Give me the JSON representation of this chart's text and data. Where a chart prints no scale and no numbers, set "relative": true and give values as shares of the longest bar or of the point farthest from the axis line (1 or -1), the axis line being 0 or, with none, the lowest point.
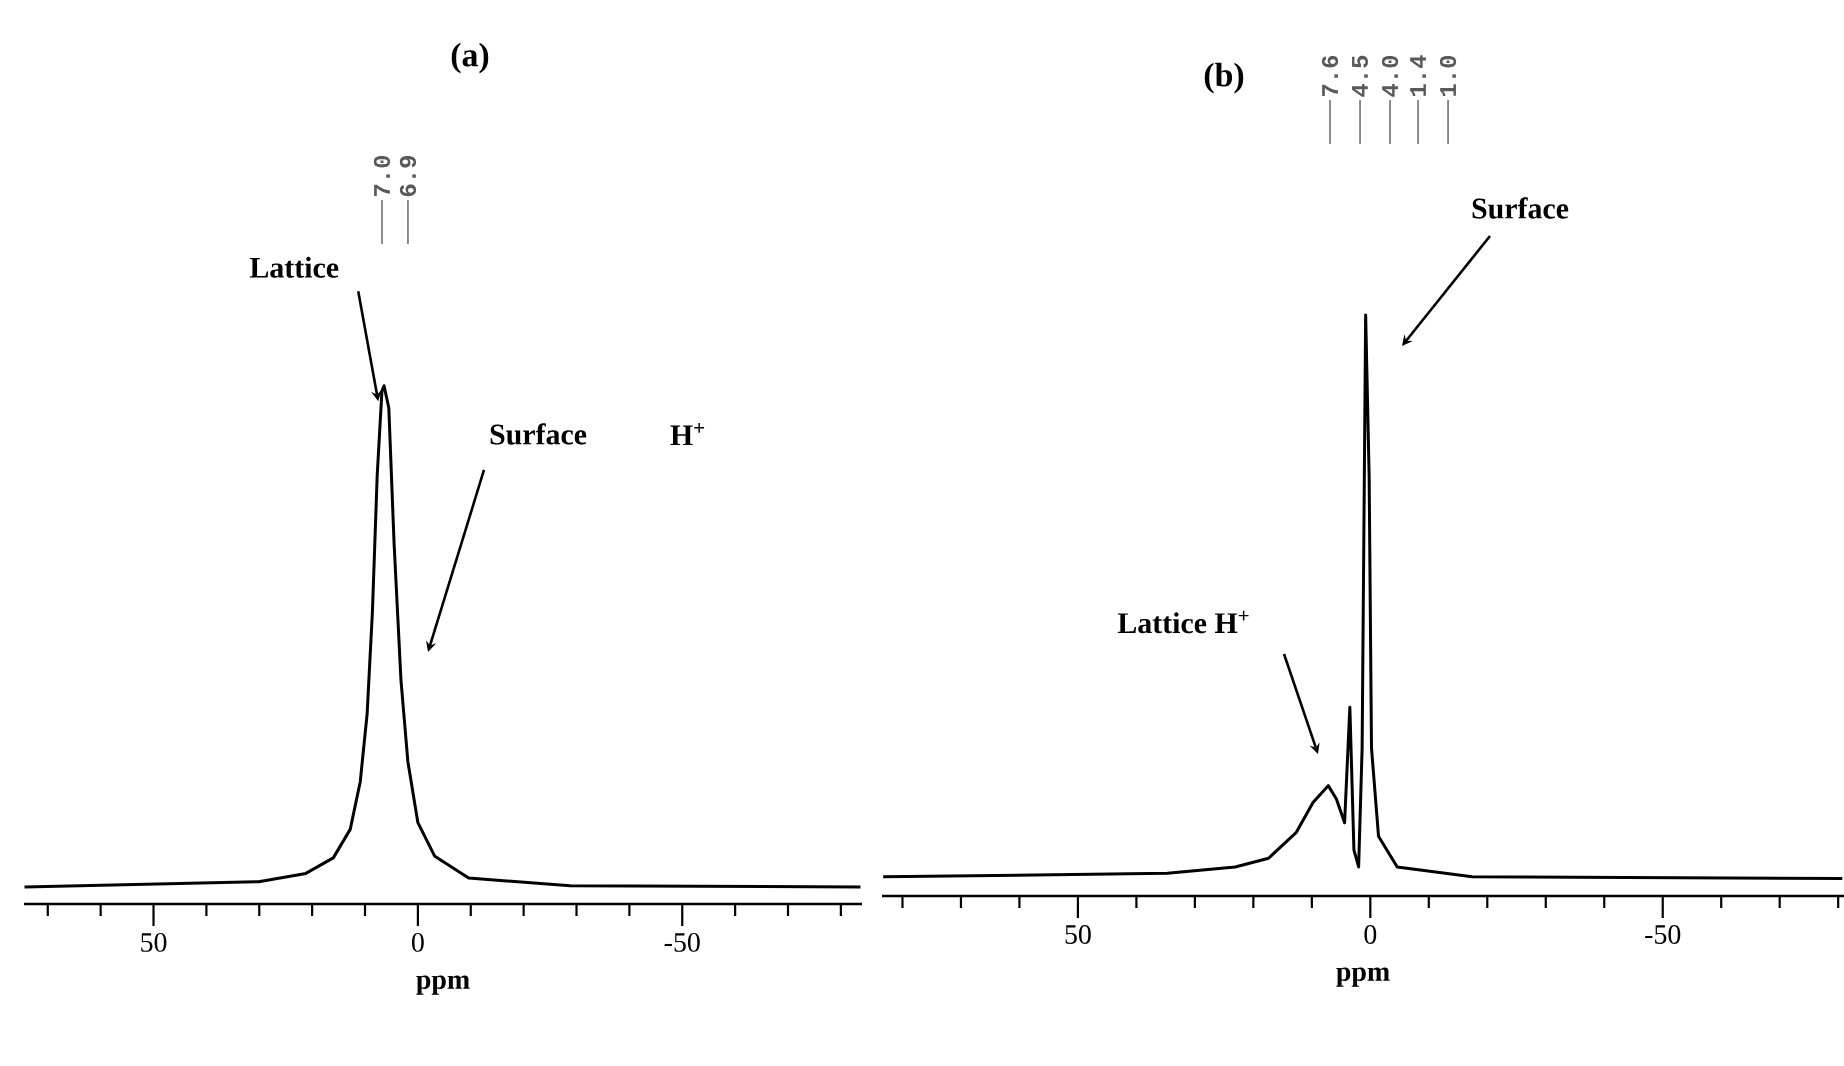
{
  "chart_data": [
    {
      "type": "line",
      "title": "(a)",
      "xlabel": "ppm",
      "relative": true,
      "xlim": [
        74.5,
        -84
      ],
      "color": "#000000",
      "xticks": [
        {
          "value": 70,
          "label": null
        },
        {
          "value": 60,
          "label": null
        },
        50,
        {
          "value": 40,
          "label": null
        },
        {
          "value": 30,
          "label": null
        },
        {
          "value": 20,
          "label": null
        },
        {
          "value": 10,
          "label": null
        },
        0,
        {
          "value": -10,
          "label": null
        },
        {
          "value": -20,
          "label": null
        },
        {
          "value": -30,
          "label": null
        },
        {
          "value": -40,
          "label": null
        },
        -50,
        {
          "value": -60,
          "label": null
        },
        {
          "value": -70,
          "label": null
        },
        {
          "value": -80,
          "label": null
        }
      ],
      "x": [
        74.4,
        30.1,
        21.2,
        16.0,
        12.8,
        10.9,
        9.6,
        8.6,
        7.7,
        6.8,
        6.4,
        5.5,
        4.5,
        3.2,
        1.9,
        0,
        -3.2,
        -9.6,
        -28.8,
        -83.7
      ],
      "values": [
        0.033,
        0.043,
        0.059,
        0.089,
        0.144,
        0.236,
        0.367,
        0.564,
        0.826,
        0.99,
        1,
        0.957,
        0.695,
        0.432,
        0.275,
        0.157,
        0.092,
        0.05,
        0.035,
        0.033
      ],
      "annotations": [
        "7.0",
        "6.9",
        "H$^{+}$",
        {
          "text": "Lattice",
          "x": 7.5,
          "y": 0.97
        },
        "Surface"
      ]
    },
    {
      "type": "line",
      "title": "(b)",
      "xlabel": "ppm",
      "relative": true,
      "xlim": [
        83.5,
        -81
      ],
      "color": "#000000",
      "xticks": [
        {
          "value": 80,
          "label": null
        },
        {
          "value": 70,
          "label": null
        },
        {
          "value": 60,
          "label": null
        },
        50,
        {
          "value": 40,
          "label": null
        },
        {
          "value": 30,
          "label": null
        },
        {
          "value": 20,
          "label": null
        },
        {
          "value": 10,
          "label": null
        },
        0,
        {
          "value": -10,
          "label": null
        },
        {
          "value": -20,
          "label": null
        },
        {
          "value": -30,
          "label": null
        },
        {
          "value": -40,
          "label": null
        },
        -50,
        {
          "value": -60,
          "label": null
        },
        {
          "value": -70,
          "label": null
        },
        {
          "value": -80,
          "label": null
        }
      ],
      "x": [
        83.3,
        34.7,
        23.1,
        17.4,
        12.7,
        9.8,
        7.2,
        5.8,
        4.4,
        3.5,
        2.8,
        2.0,
        1.4,
        0.8,
        0.2,
        -0.2,
        -1.4,
        -4.6,
        -17.4,
        -80.7
      ],
      "values": [
        0.033,
        0.039,
        0.05,
        0.065,
        0.109,
        0.161,
        0.19,
        0.167,
        0.126,
        0.325,
        0.079,
        0.05,
        0.255,
        1,
        0.722,
        0.255,
        0.103,
        0.05,
        0.033,
        0.03
      ],
      "annotations": [
        "7.6",
        "4.5",
        "4.0",
        "1.4",
        "1.0",
        "Surface",
        "Lattice H$^{+}$"
      ]
    }
  ]
}
